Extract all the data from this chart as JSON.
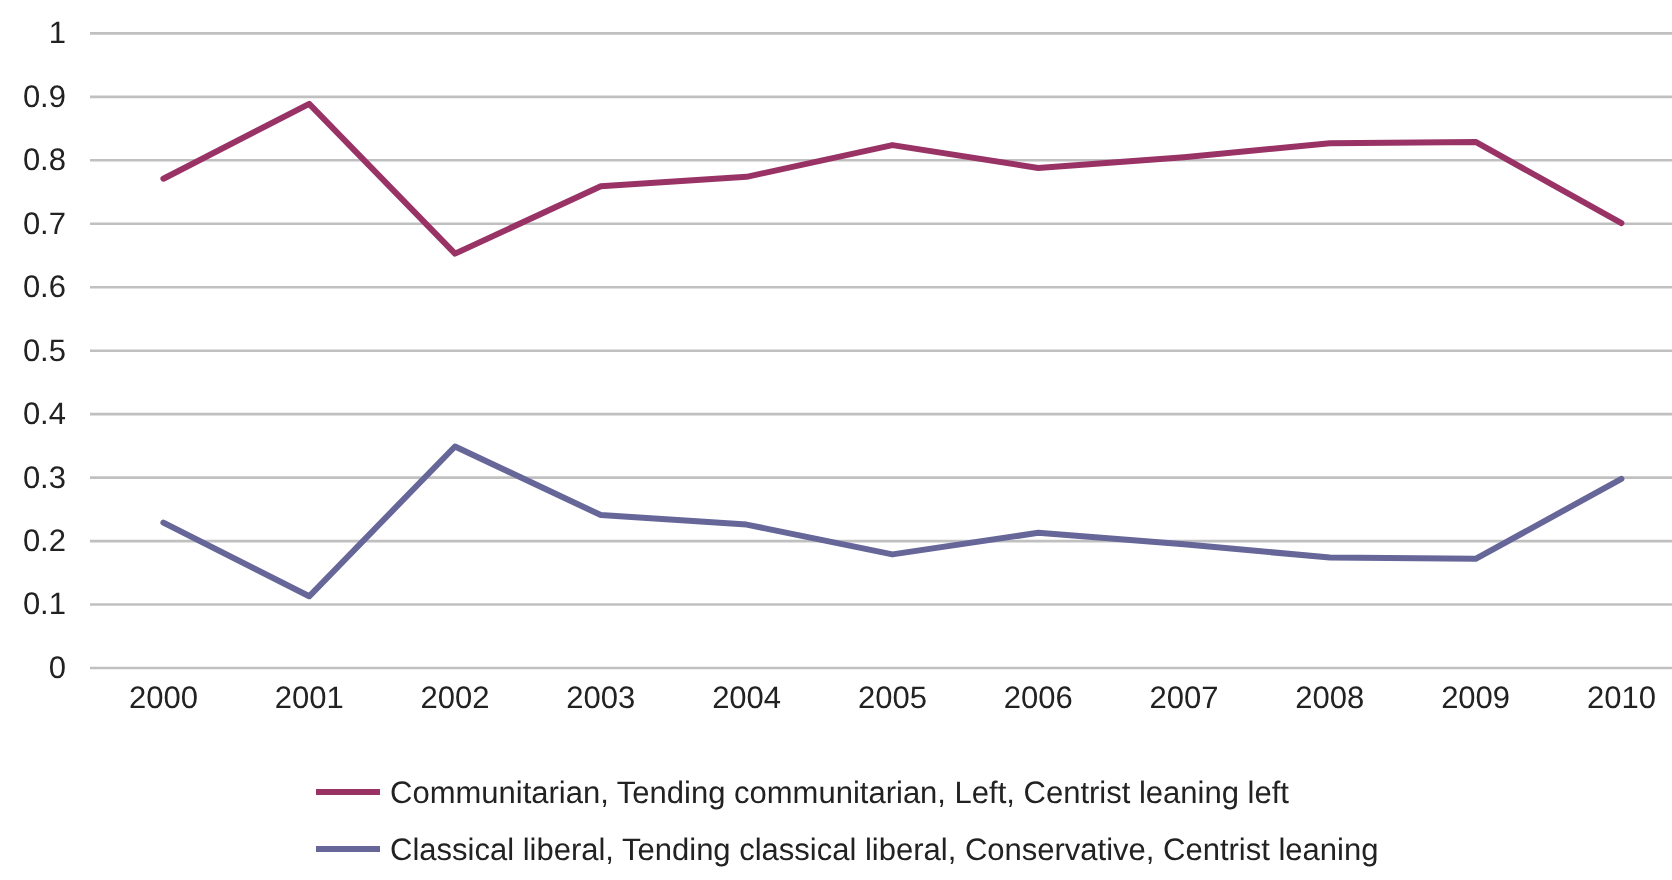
{
  "chart_data": {
    "type": "line",
    "categories": [
      "2000",
      "2001",
      "2002",
      "2003",
      "2004",
      "2005",
      "2006",
      "2007",
      "2008",
      "2009",
      "2010"
    ],
    "series": [
      {
        "name": "Communitarian, Tending communitarian, Left, Centrist leaning left",
        "color": "#993366",
        "values": [
          0.771,
          0.889,
          0.653,
          0.759,
          0.774,
          0.824,
          0.788,
          0.805,
          0.827,
          0.829,
          0.701
        ]
      },
      {
        "name": "Classical liberal, Tending classical liberal, Conservative, Centrist leaning",
        "color": "#666699",
        "values": [
          0.229,
          0.113,
          0.349,
          0.241,
          0.226,
          0.179,
          0.213,
          0.195,
          0.174,
          0.172,
          0.298
        ]
      }
    ],
    "ylim": [
      0,
      1
    ],
    "yticks": [
      0,
      0.1,
      0.2,
      0.3,
      0.4,
      0.5,
      0.6,
      0.7,
      0.8,
      0.9,
      1
    ],
    "grid": "y",
    "legend": "bottom",
    "marker": "none",
    "line_style": "solid"
  }
}
